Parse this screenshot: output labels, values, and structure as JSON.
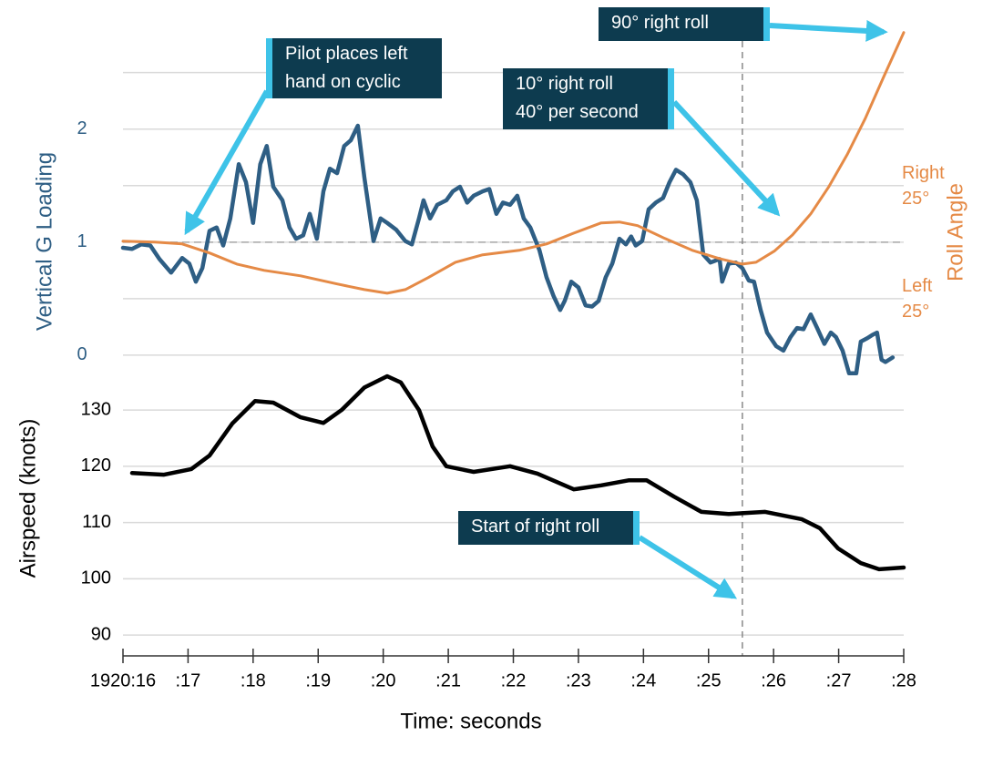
{
  "chart_data": {
    "type": "line",
    "ylabel": "Vertical G Loading",
    "y2label": "Roll Angle",
    "y3label": "Airspeed (knots)",
    "xlabel": "Time: seconds",
    "xlim": [
      16,
      28
    ],
    "xticks": [
      {
        "value": 16,
        "label": "1920:16"
      },
      {
        "value": 17,
        "label": ":17"
      },
      {
        "value": 18,
        "label": ":18"
      },
      {
        "value": 19,
        "label": ":19"
      },
      {
        "value": 20,
        "label": ":20"
      },
      {
        "value": 21,
        "label": ":21"
      },
      {
        "value": 22,
        "label": ":22"
      },
      {
        "value": 23,
        "label": ":23"
      },
      {
        "value": 24,
        "label": ":24"
      },
      {
        "value": 25,
        "label": ":25"
      },
      {
        "value": 26,
        "label": ":26"
      },
      {
        "value": 27,
        "label": ":27"
      },
      {
        "value": 28,
        "label": ":28"
      }
    ],
    "ylim": [
      -2.66,
      2.86
    ],
    "yticks": [
      0,
      1,
      2
    ],
    "ygrid": [
      0,
      0.5,
      1,
      1.5,
      2,
      2.5
    ],
    "ref_line": 1,
    "y2lim": [
      -183,
      93
    ],
    "y2ticks": [
      {
        "value": 25,
        "label": "Right 25°"
      },
      {
        "value": -25,
        "label": "Left 25°"
      }
    ],
    "y3lim": [
      86.3,
      197.2
    ],
    "y3ticks": [
      90,
      100,
      110,
      120,
      130
    ],
    "vline": 25.52,
    "grid": true,
    "series": [
      {
        "axis": "y",
        "color": "#2e5e84",
        "x": [
          16.0,
          16.14,
          16.28,
          16.42,
          16.56,
          16.74,
          16.91,
          17.02,
          17.12,
          17.22,
          17.33,
          17.44,
          17.54,
          17.65,
          17.78,
          17.89,
          18.0,
          18.11,
          18.21,
          18.31,
          18.45,
          18.56,
          18.66,
          18.77,
          18.87,
          18.98,
          19.08,
          19.18,
          19.29,
          19.4,
          19.5,
          19.61,
          19.71,
          19.85,
          19.96,
          20.06,
          20.2,
          20.34,
          20.44,
          20.55,
          20.62,
          20.72,
          20.83,
          20.97,
          21.07,
          21.18,
          21.29,
          21.39,
          21.53,
          21.63,
          21.74,
          21.84,
          21.95,
          22.06,
          22.16,
          22.26,
          22.4,
          22.51,
          22.62,
          22.72,
          22.79,
          22.89,
          23.0,
          23.11,
          23.21,
          23.31,
          23.42,
          23.52,
          23.63,
          23.73,
          23.81,
          23.88,
          23.98,
          24.08,
          24.19,
          24.3,
          24.4,
          24.5,
          24.61,
          24.72,
          24.82,
          24.92,
          25.03,
          25.17,
          25.21,
          25.31,
          25.42,
          25.52,
          25.62,
          25.7,
          25.8,
          25.9,
          26.04,
          26.15,
          26.26,
          26.36,
          26.46,
          26.57,
          26.67,
          26.78,
          26.88,
          26.96,
          27.06,
          27.16,
          27.27,
          27.34,
          27.44,
          27.52,
          27.59,
          27.66,
          27.72,
          27.83
        ],
        "values": [
          0.95,
          0.94,
          0.98,
          0.97,
          0.85,
          0.73,
          0.86,
          0.81,
          0.65,
          0.77,
          1.1,
          1.13,
          0.97,
          1.21,
          1.69,
          1.53,
          1.17,
          1.69,
          1.85,
          1.49,
          1.37,
          1.13,
          1.03,
          1.06,
          1.25,
          1.03,
          1.45,
          1.65,
          1.61,
          1.85,
          1.9,
          2.03,
          1.57,
          1.01,
          1.21,
          1.17,
          1.11,
          1.01,
          0.98,
          1.21,
          1.37,
          1.21,
          1.33,
          1.37,
          1.45,
          1.49,
          1.35,
          1.41,
          1.45,
          1.47,
          1.25,
          1.35,
          1.33,
          1.41,
          1.21,
          1.13,
          0.93,
          0.69,
          0.52,
          0.4,
          0.48,
          0.65,
          0.6,
          0.44,
          0.43,
          0.48,
          0.69,
          0.81,
          1.03,
          0.98,
          1.05,
          0.97,
          1.01,
          1.29,
          1.35,
          1.39,
          1.53,
          1.64,
          1.6,
          1.53,
          1.37,
          0.89,
          0.82,
          0.85,
          0.65,
          0.81,
          0.82,
          0.77,
          0.66,
          0.65,
          0.4,
          0.2,
          0.08,
          0.04,
          0.16,
          0.24,
          0.23,
          0.36,
          0.24,
          0.1,
          0.2,
          0.16,
          0.04,
          -0.16,
          -0.16,
          0.12,
          0.15,
          0.18,
          0.2,
          -0.04,
          -0.06,
          -0.02
        ]
      },
      {
        "axis": "y2",
        "color": "#e58a46",
        "x": [
          16.0,
          16.49,
          16.91,
          17.33,
          17.75,
          18.17,
          18.73,
          19.29,
          19.71,
          20.06,
          20.34,
          20.69,
          21.11,
          21.53,
          22.09,
          22.51,
          22.93,
          23.35,
          23.63,
          23.91,
          24.33,
          24.75,
          25.17,
          25.52,
          25.73,
          26.01,
          26.29,
          26.57,
          26.85,
          27.13,
          27.41,
          27.69,
          28.0
        ],
        "values": [
          0.4,
          0,
          -0.8,
          -4.8,
          -9.7,
          -12.5,
          -14.9,
          -18.5,
          -21.0,
          -22.6,
          -21.0,
          -15.7,
          -8.9,
          -5.6,
          -3.6,
          -0.8,
          4.0,
          8.5,
          8.9,
          7.3,
          1.6,
          -3.6,
          -7.3,
          -9.7,
          -8.9,
          -4.0,
          3.2,
          12.5,
          24.6,
          38.7,
          54.8,
          73.0,
          92.7
        ]
      },
      {
        "axis": "y3",
        "color": "#000000",
        "x": [
          16.14,
          16.63,
          17.05,
          17.33,
          17.68,
          18.03,
          18.31,
          18.73,
          19.08,
          19.36,
          19.71,
          20.06,
          20.27,
          20.55,
          20.76,
          20.97,
          21.39,
          21.95,
          22.37,
          22.93,
          23.35,
          23.77,
          24.05,
          24.47,
          24.89,
          25.31,
          25.87,
          26.43,
          26.71,
          26.99,
          27.34,
          27.62,
          28.0
        ],
        "values": [
          118.8,
          118.5,
          119.5,
          121.9,
          127.6,
          131.6,
          131.3,
          128.7,
          127.7,
          130.0,
          134.0,
          136.0,
          134.9,
          130.0,
          123.5,
          120.0,
          119.0,
          120.0,
          118.7,
          115.9,
          116.6,
          117.5,
          117.5,
          114.6,
          111.9,
          111.5,
          111.9,
          110.6,
          109.0,
          105.4,
          102.8,
          101.7,
          102.0
        ]
      }
    ],
    "annotations": [
      {
        "lines": [
          "Pilot places left",
          "hand on cyclic"
        ]
      },
      {
        "lines": [
          "90° right roll"
        ]
      },
      {
        "lines": [
          "10° right roll",
          "40° per second"
        ]
      },
      {
        "lines": [
          "Start of right roll"
        ]
      }
    ]
  }
}
